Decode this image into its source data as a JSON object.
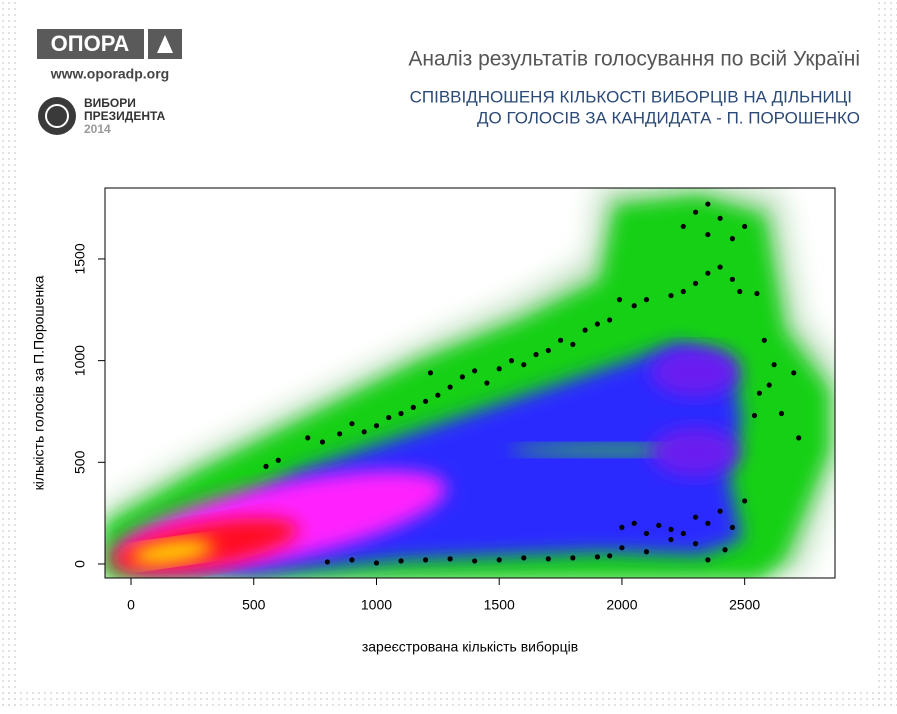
{
  "header": {
    "logo": "ОПОРА",
    "website": "www.oporadp.org",
    "badge_line1": "ВИБОРИ",
    "badge_line2": "ПРЕЗИДЕНТА",
    "badge_year": "2014"
  },
  "chart_data": {
    "type": "scatter",
    "title": "Аналіз результатів голосування по всій Україні",
    "subtitle_line1": "СПІВВІДНОШЕНЯ КІЛЬКОСТІ ВИБОРЦІВ НА ДІЛЬНИЦІ",
    "subtitle_line2": "ДО ГОЛОСІВ ЗА КАНДИДАТА - П. ПОРОШЕНКО",
    "x_label": "зареєстрована кількість виборців",
    "y_label": "кількість голосів за П.Порошенка",
    "xlim": [
      -106,
      2868
    ],
    "ylim": [
      -69,
      1849
    ],
    "xticks": [
      0,
      500,
      1000,
      1500,
      2000,
      2500
    ],
    "yticks": [
      0,
      500,
      1000,
      1500
    ],
    "color": "#000000",
    "x": [
      550,
      600,
      720,
      780,
      850,
      900,
      950,
      1000,
      1050,
      1100,
      1150,
      1200,
      1250,
      1220,
      1300,
      1350,
      1400,
      1450,
      1500,
      1550,
      1600,
      1650,
      1700,
      1750,
      1800,
      1850,
      1900,
      1950,
      1990,
      2050,
      2100,
      2200,
      2250,
      2300,
      2350,
      2400,
      2450,
      2480,
      2250,
      2300,
      2350,
      2400,
      2350,
      2450,
      2500,
      2550,
      2580,
      2620,
      2600,
      2650,
      2700,
      2720,
      2540,
      2560,
      800,
      900,
      1000,
      1100,
      1200,
      1300,
      1400,
      1500,
      1600,
      1700,
      1800,
      1900,
      2000,
      2050,
      2100,
      2150,
      2200,
      2250,
      2300,
      2350,
      2400,
      2450,
      2200,
      2300,
      2000,
      2100,
      2350,
      2500,
      1950,
      2420
    ],
    "y": [
      480,
      510,
      620,
      600,
      640,
      690,
      650,
      680,
      720,
      740,
      770,
      800,
      830,
      940,
      870,
      920,
      950,
      890,
      960,
      1000,
      980,
      1030,
      1050,
      1100,
      1080,
      1150,
      1180,
      1200,
      1300,
      1270,
      1300,
      1320,
      1340,
      1380,
      1430,
      1460,
      1400,
      1340,
      1660,
      1730,
      1770,
      1700,
      1620,
      1600,
      1660,
      1330,
      1100,
      980,
      880,
      740,
      940,
      620,
      730,
      840,
      10,
      20,
      5,
      15,
      20,
      25,
      15,
      20,
      30,
      25,
      30,
      35,
      180,
      200,
      150,
      190,
      170,
      150,
      230,
      200,
      260,
      180,
      120,
      100,
      80,
      60,
      20,
      310,
      40,
      70
    ]
  }
}
